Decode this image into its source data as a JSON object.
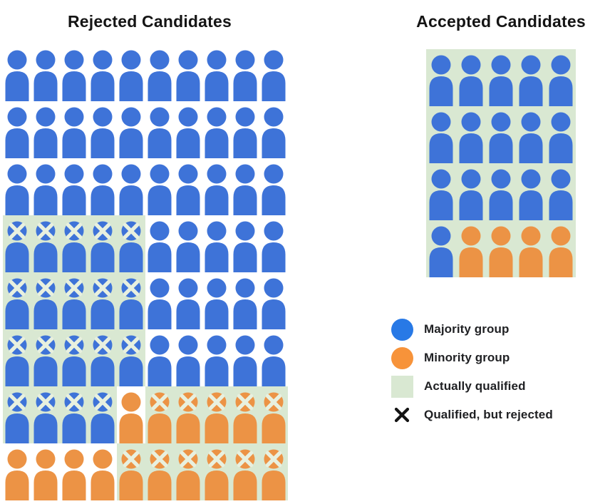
{
  "titles": {
    "rejected": "Rejected Candidates",
    "accepted": "Accepted Candidates"
  },
  "colors": {
    "majority": "#3E73D8",
    "minority": "#EC9345",
    "legend_majority": "#2879E6",
    "legend_minority": "#F7933A",
    "qualified_bg": "#D9E8D2",
    "x_mark": "#E8F0DF",
    "legend_x": "#141414",
    "text": "#141414"
  },
  "legend": {
    "items": [
      {
        "icon": "majority-circle",
        "label": "Majority group"
      },
      {
        "icon": "minority-circle",
        "label": "Minority group"
      },
      {
        "icon": "qualified-square",
        "label": "Actually qualified"
      },
      {
        "icon": "rejected-x",
        "label": "Qualified, but rejected"
      }
    ]
  },
  "grids": {
    "rejected": {
      "columns": 10,
      "token_legend": "b=majority person, o=minority person, q=actually-qualified green background, x=qualified-but-rejected cross mark",
      "rows": [
        [
          "b",
          "b",
          "b",
          "b",
          "b",
          "b",
          "b",
          "b",
          "b",
          "b"
        ],
        [
          "b",
          "b",
          "b",
          "b",
          "b",
          "b",
          "b",
          "b",
          "b",
          "b"
        ],
        [
          "b",
          "b",
          "b",
          "b",
          "b",
          "b",
          "b",
          "b",
          "b",
          "b"
        ],
        [
          "bqx",
          "bqx",
          "bqx",
          "bqx",
          "bqx",
          "b",
          "b",
          "b",
          "b",
          "b"
        ],
        [
          "bqx",
          "bqx",
          "bqx",
          "bqx",
          "bqx",
          "b",
          "b",
          "b",
          "b",
          "b"
        ],
        [
          "bqx",
          "bqx",
          "bqx",
          "bqx",
          "bqx",
          "b",
          "b",
          "b",
          "b",
          "b"
        ],
        [
          "bqx",
          "bqx",
          "bqx",
          "bqx",
          "o",
          "oqx",
          "oqx",
          "oqx",
          "oqx",
          "oqx"
        ],
        [
          "o",
          "o",
          "o",
          "o",
          "oqx",
          "oqx",
          "oqx",
          "oqx",
          "oqx",
          "oqx"
        ]
      ]
    },
    "accepted": {
      "columns": 5,
      "panel_qualified": true,
      "rows": [
        [
          "bq",
          "bq",
          "bq",
          "bq",
          "bq"
        ],
        [
          "bq",
          "bq",
          "bq",
          "bq",
          "bq"
        ],
        [
          "bq",
          "bq",
          "bq",
          "bq",
          "bq"
        ],
        [
          "bq",
          "oq",
          "oq",
          "oq",
          "oq"
        ]
      ]
    }
  }
}
